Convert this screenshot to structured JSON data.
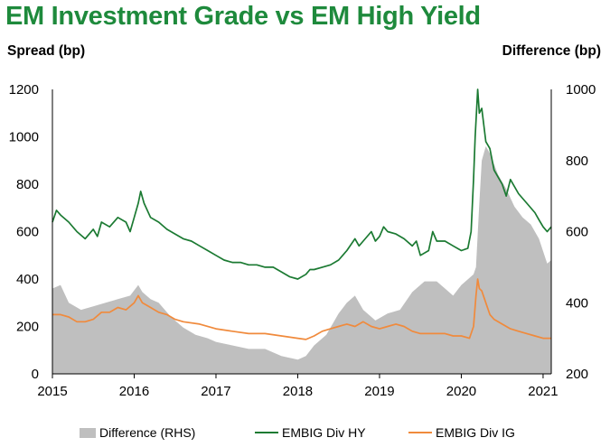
{
  "title": "EM Investment Grade vs EM High Yield",
  "colors": {
    "title": "#1e8a3c",
    "hy": "#1b7a32",
    "ig": "#f08a3c",
    "difference": "#bfbfbf"
  },
  "chart_data": {
    "type": "line",
    "ylabel": "Spread (bp)",
    "y2label": "Difference (bp)",
    "x_ticks": [
      "2015",
      "2016",
      "2017",
      "2018",
      "2019",
      "2020",
      "2021"
    ],
    "xlim": [
      2015.0,
      2021.1
    ],
    "ylim": [
      0,
      1200
    ],
    "y2lim": [
      200,
      1000
    ],
    "y_ticks": [
      "0",
      "200",
      "400",
      "600",
      "800",
      "1000",
      "1200"
    ],
    "y2_ticks": [
      "200",
      "400",
      "600",
      "800",
      "1000"
    ],
    "grid": false,
    "legend_position": "bottom",
    "series": [
      {
        "name": "Difference (RHS)",
        "axis": "right",
        "type": "area",
        "x": [
          2015.0,
          2015.1,
          2015.2,
          2015.35,
          2015.5,
          2015.65,
          2015.8,
          2015.95,
          2016.05,
          2016.1,
          2016.2,
          2016.3,
          2016.45,
          2016.6,
          2016.75,
          2016.9,
          2017.0,
          2017.2,
          2017.4,
          2017.6,
          2017.8,
          2018.0,
          2018.1,
          2018.2,
          2018.35,
          2018.5,
          2018.6,
          2018.7,
          2018.8,
          2018.95,
          2019.1,
          2019.25,
          2019.4,
          2019.55,
          2019.7,
          2019.8,
          2019.9,
          2020.0,
          2020.1,
          2020.15,
          2020.18,
          2020.22,
          2020.25,
          2020.3,
          2020.35,
          2020.45,
          2020.55,
          2020.65,
          2020.75,
          2020.85,
          2020.95,
          2021.05,
          2021.1
        ],
        "y": [
          440,
          450,
          400,
          380,
          390,
          400,
          410,
          420,
          450,
          430,
          410,
          400,
          360,
          330,
          310,
          300,
          290,
          280,
          270,
          270,
          250,
          240,
          250,
          280,
          310,
          370,
          400,
          420,
          380,
          350,
          370,
          380,
          430,
          460,
          460,
          440,
          420,
          450,
          470,
          480,
          500,
          680,
          800,
          840,
          820,
          760,
          720,
          670,
          640,
          620,
          580,
          510,
          520
        ]
      },
      {
        "name": "EMBIG Div HY",
        "axis": "left",
        "type": "line",
        "x": [
          2015.0,
          2015.05,
          2015.1,
          2015.2,
          2015.3,
          2015.4,
          2015.5,
          2015.55,
          2015.6,
          2015.7,
          2015.8,
          2015.9,
          2015.95,
          2016.0,
          2016.05,
          2016.08,
          2016.12,
          2016.2,
          2016.3,
          2016.4,
          2016.5,
          2016.6,
          2016.7,
          2016.8,
          2016.9,
          2017.0,
          2017.1,
          2017.2,
          2017.3,
          2017.4,
          2017.5,
          2017.6,
          2017.7,
          2017.8,
          2017.9,
          2018.0,
          2018.1,
          2018.15,
          2018.2,
          2018.3,
          2018.4,
          2018.5,
          2018.6,
          2018.7,
          2018.75,
          2018.8,
          2018.9,
          2018.95,
          2019.0,
          2019.05,
          2019.1,
          2019.2,
          2019.3,
          2019.4,
          2019.45,
          2019.5,
          2019.6,
          2019.65,
          2019.7,
          2019.8,
          2019.9,
          2020.0,
          2020.08,
          2020.12,
          2020.15,
          2020.17,
          2020.2,
          2020.22,
          2020.25,
          2020.3,
          2020.35,
          2020.4,
          2020.5,
          2020.55,
          2020.6,
          2020.7,
          2020.8,
          2020.9,
          2020.95,
          2021.0,
          2021.05,
          2021.1
        ],
        "y": [
          640,
          690,
          670,
          640,
          600,
          570,
          610,
          580,
          640,
          620,
          660,
          640,
          600,
          660,
          720,
          770,
          720,
          660,
          640,
          610,
          590,
          570,
          560,
          540,
          520,
          500,
          480,
          470,
          470,
          460,
          460,
          450,
          450,
          430,
          410,
          400,
          420,
          440,
          440,
          450,
          460,
          480,
          520,
          570,
          540,
          560,
          600,
          560,
          580,
          620,
          600,
          590,
          570,
          540,
          560,
          500,
          520,
          600,
          560,
          560,
          540,
          520,
          530,
          600,
          820,
          1000,
          1200,
          1100,
          1120,
          980,
          950,
          860,
          800,
          750,
          820,
          760,
          720,
          680,
          650,
          620,
          600,
          620
        ]
      },
      {
        "name": "EMBIG Div IG",
        "axis": "left",
        "type": "line",
        "x": [
          2015.0,
          2015.1,
          2015.2,
          2015.3,
          2015.4,
          2015.5,
          2015.6,
          2015.7,
          2015.8,
          2015.9,
          2016.0,
          2016.05,
          2016.1,
          2016.2,
          2016.3,
          2016.4,
          2016.5,
          2016.6,
          2016.8,
          2017.0,
          2017.2,
          2017.4,
          2017.6,
          2017.8,
          2018.0,
          2018.1,
          2018.2,
          2018.3,
          2018.4,
          2018.5,
          2018.6,
          2018.7,
          2018.8,
          2018.9,
          2019.0,
          2019.1,
          2019.2,
          2019.3,
          2019.4,
          2019.5,
          2019.6,
          2019.7,
          2019.8,
          2019.9,
          2020.0,
          2020.1,
          2020.15,
          2020.18,
          2020.2,
          2020.22,
          2020.25,
          2020.3,
          2020.35,
          2020.4,
          2020.5,
          2020.6,
          2020.7,
          2020.8,
          2020.9,
          2021.0,
          2021.1
        ],
        "y": [
          250,
          250,
          240,
          220,
          220,
          230,
          260,
          260,
          280,
          270,
          300,
          330,
          300,
          280,
          260,
          250,
          230,
          220,
          210,
          190,
          180,
          170,
          170,
          160,
          150,
          145,
          160,
          180,
          190,
          200,
          210,
          200,
          220,
          200,
          190,
          200,
          210,
          200,
          180,
          170,
          170,
          170,
          170,
          160,
          160,
          150,
          200,
          330,
          400,
          360,
          350,
          300,
          250,
          230,
          210,
          190,
          180,
          170,
          160,
          150,
          150
        ]
      }
    ]
  },
  "legend": [
    {
      "label": "Difference (RHS)",
      "kind": "area",
      "color": "#bfbfbf"
    },
    {
      "label": "EMBIG Div HY",
      "kind": "line",
      "color": "#1b7a32"
    },
    {
      "label": "EMBIG Div IG",
      "kind": "line",
      "color": "#f08a3c"
    }
  ]
}
